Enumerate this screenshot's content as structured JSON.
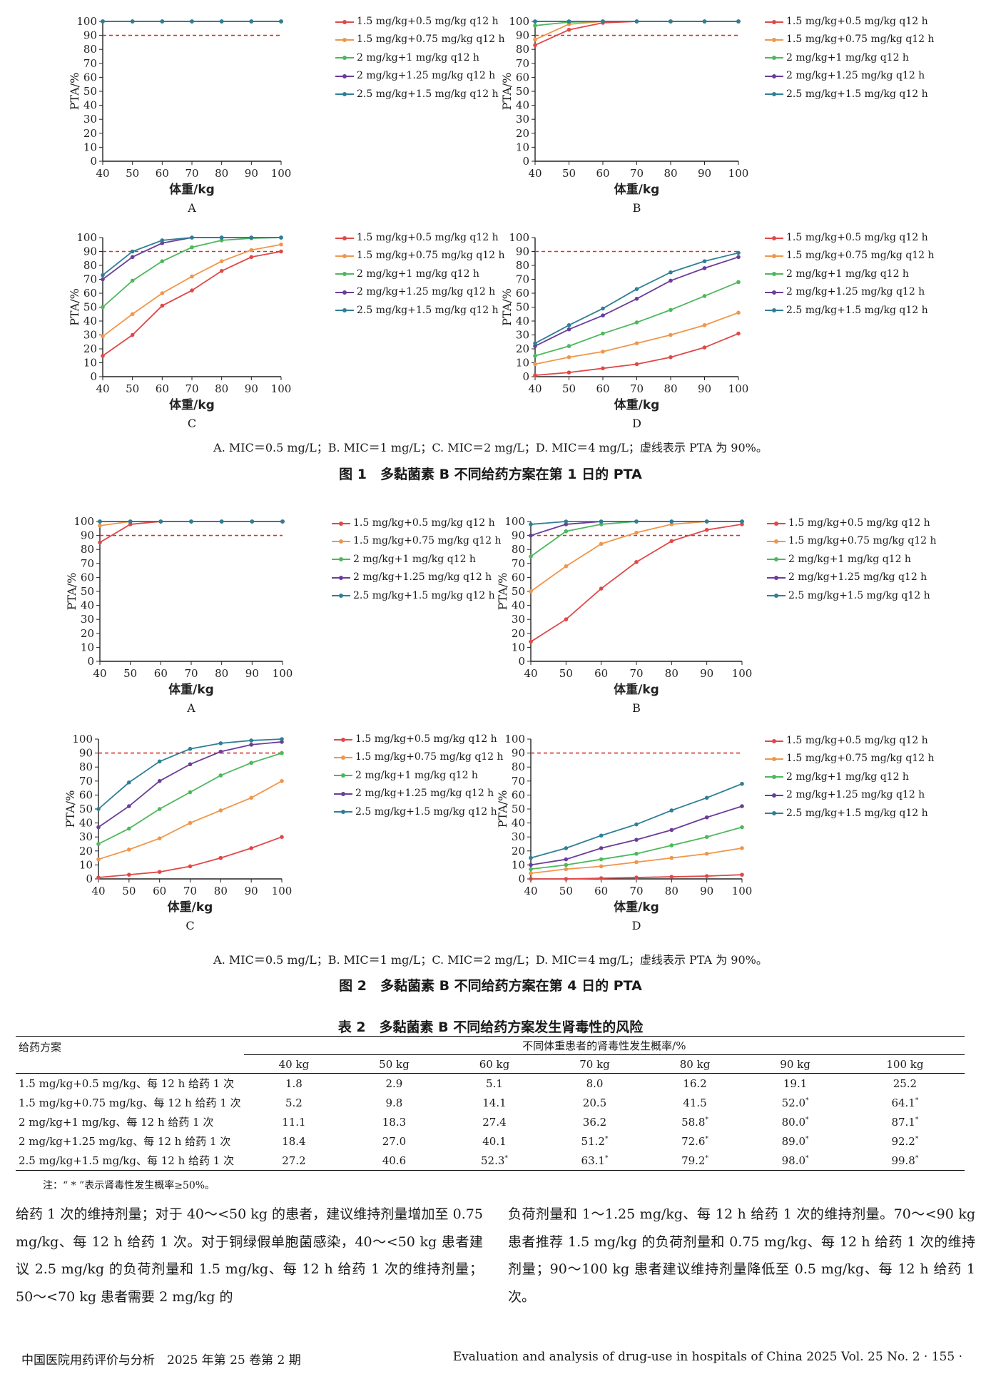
{
  "chart_data": [
    {
      "id": "fig1A",
      "type": "line",
      "panel": "A",
      "x": [
        40,
        50,
        60,
        70,
        80,
        90,
        100
      ],
      "ylim": [
        0,
        100
      ],
      "ylabel": "PTA/%",
      "xlabel": "体重/kg",
      "reference_line": 90,
      "series": [
        {
          "name": "1.5 mg/kg+0.5 mg/kg q12 h",
          "color": "#e04848",
          "values": [
            100,
            100,
            100,
            100,
            100,
            100,
            100
          ]
        },
        {
          "name": "1.5 mg/kg+0.75 mg/kg q12 h",
          "color": "#f0964a",
          "values": [
            100,
            100,
            100,
            100,
            100,
            100,
            100
          ]
        },
        {
          "name": "2 mg/kg+1 mg/kg q12 h",
          "color": "#4cb85c",
          "values": [
            100,
            100,
            100,
            100,
            100,
            100,
            100
          ]
        },
        {
          "name": "2 mg/kg+1.25 mg/kg q12 h",
          "color": "#6a3d9a",
          "values": [
            100,
            100,
            100,
            100,
            100,
            100,
            100
          ]
        },
        {
          "name": "2.5 mg/kg+1.5 mg/kg q12 h",
          "color": "#2e7f95",
          "values": [
            100,
            100,
            100,
            100,
            100,
            100,
            100
          ]
        }
      ]
    },
    {
      "id": "fig1B",
      "type": "line",
      "panel": "B",
      "x": [
        40,
        50,
        60,
        70,
        80,
        90,
        100
      ],
      "ylim": [
        0,
        100
      ],
      "ylabel": "PTA/%",
      "xlabel": "体重/kg",
      "reference_line": 90,
      "series": [
        {
          "name": "1.5 mg/kg+0.5 mg/kg q12 h",
          "color": "#e04848",
          "values": [
            83,
            94,
            99,
            100,
            100,
            100,
            100
          ]
        },
        {
          "name": "1.5 mg/kg+0.75 mg/kg q12 h",
          "color": "#f0964a",
          "values": [
            87,
            98,
            100,
            100,
            100,
            100,
            100
          ]
        },
        {
          "name": "2 mg/kg+1 mg/kg q12 h",
          "color": "#4cb85c",
          "values": [
            97,
            99.5,
            100,
            100,
            100,
            100,
            100
          ]
        },
        {
          "name": "2 mg/kg+1.25 mg/kg q12 h",
          "color": "#6a3d9a",
          "values": [
            100,
            100,
            100,
            100,
            100,
            100,
            100
          ]
        },
        {
          "name": "2.5 mg/kg+1.5 mg/kg q12 h",
          "color": "#2e7f95",
          "values": [
            100,
            100,
            100,
            100,
            100,
            100,
            100
          ]
        }
      ]
    },
    {
      "id": "fig1C",
      "type": "line",
      "panel": "C",
      "x": [
        40,
        50,
        60,
        70,
        80,
        90,
        100
      ],
      "ylim": [
        0,
        100
      ],
      "ylabel": "PTA/%",
      "xlabel": "体重/kg",
      "reference_line": 90,
      "series": [
        {
          "name": "1.5 mg/kg+0.5 mg/kg q12 h",
          "color": "#e04848",
          "values": [
            15,
            30,
            51,
            62,
            76,
            86,
            90
          ]
        },
        {
          "name": "1.5 mg/kg+0.75 mg/kg q12 h",
          "color": "#f0964a",
          "values": [
            29,
            45,
            60,
            72,
            83,
            91,
            95
          ]
        },
        {
          "name": "2 mg/kg+1 mg/kg q12 h",
          "color": "#4cb85c",
          "values": [
            50,
            69,
            83,
            93,
            98,
            99.5,
            100
          ]
        },
        {
          "name": "2 mg/kg+1.25 mg/kg q12 h",
          "color": "#6a3d9a",
          "values": [
            70,
            86,
            96,
            100,
            100,
            100,
            100
          ]
        },
        {
          "name": "2.5 mg/kg+1.5 mg/kg q12 h",
          "color": "#2e7f95",
          "values": [
            73,
            90,
            98,
            100,
            100,
            100,
            100
          ]
        }
      ]
    },
    {
      "id": "fig1D",
      "type": "line",
      "panel": "D",
      "x": [
        40,
        50,
        60,
        70,
        80,
        90,
        100
      ],
      "ylim": [
        0,
        100
      ],
      "ylabel": "PTA/%",
      "xlabel": "体重/kg",
      "reference_line": 90,
      "series": [
        {
          "name": "1.5 mg/kg+0.5 mg/kg q12 h",
          "color": "#e04848",
          "values": [
            1,
            3,
            6,
            9,
            14,
            21,
            31
          ]
        },
        {
          "name": "1.5 mg/kg+0.75 mg/kg q12 h",
          "color": "#f0964a",
          "values": [
            9,
            14,
            18,
            24,
            30,
            37,
            46
          ]
        },
        {
          "name": "2 mg/kg+1 mg/kg q12 h",
          "color": "#4cb85c",
          "values": [
            15,
            22,
            31,
            39,
            48,
            58,
            68
          ]
        },
        {
          "name": "2 mg/kg+1.25 mg/kg q12 h",
          "color": "#6a3d9a",
          "values": [
            22,
            34,
            44,
            56,
            69,
            78,
            86
          ]
        },
        {
          "name": "2.5 mg/kg+1.5 mg/kg q12 h",
          "color": "#2e7f95",
          "values": [
            24,
            37,
            49,
            63,
            75,
            83,
            89
          ]
        }
      ]
    },
    {
      "id": "fig2A",
      "type": "line",
      "panel": "A",
      "x": [
        40,
        50,
        60,
        70,
        80,
        90,
        100
      ],
      "ylim": [
        0,
        100
      ],
      "ylabel": "PTA/%",
      "xlabel": "体重/kg",
      "reference_line": 90,
      "series": [
        {
          "name": "1.5 mg/kg+0.5 mg/kg q12 h",
          "color": "#e04848",
          "values": [
            85,
            98,
            100,
            100,
            100,
            100,
            100
          ]
        },
        {
          "name": "1.5 mg/kg+0.75 mg/kg q12 h",
          "color": "#f0964a",
          "values": [
            97,
            100,
            100,
            100,
            100,
            100,
            100
          ]
        },
        {
          "name": "2 mg/kg+1 mg/kg q12 h",
          "color": "#4cb85c",
          "values": [
            100,
            100,
            100,
            100,
            100,
            100,
            100
          ]
        },
        {
          "name": "2 mg/kg+1.25 mg/kg q12 h",
          "color": "#6a3d9a",
          "values": [
            100,
            100,
            100,
            100,
            100,
            100,
            100
          ]
        },
        {
          "name": "2.5 mg/kg+1.5 mg/kg q12 h",
          "color": "#2e7f95",
          "values": [
            100,
            100,
            100,
            100,
            100,
            100,
            100
          ]
        }
      ]
    },
    {
      "id": "fig2B",
      "type": "line",
      "panel": "B",
      "x": [
        40,
        50,
        60,
        70,
        80,
        90,
        100
      ],
      "ylim": [
        0,
        100
      ],
      "ylabel": "PTA/%",
      "xlabel": "体重/kg",
      "reference_line": 90,
      "series": [
        {
          "name": "1.5 mg/kg+0.5 mg/kg q12 h",
          "color": "#e04848",
          "values": [
            14,
            30,
            52,
            71,
            86,
            94,
            98
          ]
        },
        {
          "name": "1.5 mg/kg+0.75 mg/kg q12 h",
          "color": "#f0964a",
          "values": [
            50,
            68,
            84,
            92,
            98,
            100,
            100
          ]
        },
        {
          "name": "2 mg/kg+1 mg/kg q12 h",
          "color": "#4cb85c",
          "values": [
            75,
            93,
            98,
            100,
            100,
            100,
            100
          ]
        },
        {
          "name": "2 mg/kg+1.25 mg/kg q12 h",
          "color": "#6a3d9a",
          "values": [
            90,
            98,
            100,
            100,
            100,
            100,
            100
          ]
        },
        {
          "name": "2.5 mg/kg+1.5 mg/kg q12 h",
          "color": "#2e7f95",
          "values": [
            98,
            100,
            100,
            100,
            100,
            100,
            100
          ]
        }
      ]
    },
    {
      "id": "fig2C",
      "type": "line",
      "panel": "C",
      "x": [
        40,
        50,
        60,
        70,
        80,
        90,
        100
      ],
      "ylim": [
        0,
        100
      ],
      "ylabel": "PTA/%",
      "xlabel": "体重/kg",
      "reference_line": 90,
      "series": [
        {
          "name": "1.5 mg/kg+0.5 mg/kg q12 h",
          "color": "#e04848",
          "values": [
            1,
            3,
            5,
            9,
            15,
            22,
            30
          ]
        },
        {
          "name": "1.5 mg/kg+0.75 mg/kg q12 h",
          "color": "#f0964a",
          "values": [
            14,
            21,
            29,
            40,
            49,
            58,
            70
          ]
        },
        {
          "name": "2 mg/kg+1 mg/kg q12 h",
          "color": "#4cb85c",
          "values": [
            25,
            36,
            50,
            62,
            74,
            83,
            90
          ]
        },
        {
          "name": "2 mg/kg+1.25 mg/kg q12 h",
          "color": "#6a3d9a",
          "values": [
            37,
            52,
            70,
            82,
            91,
            96,
            98
          ]
        },
        {
          "name": "2.5 mg/kg+1.5 mg/kg q12 h",
          "color": "#2e7f95",
          "values": [
            50,
            69,
            84,
            93,
            97,
            99,
            100
          ]
        }
      ]
    },
    {
      "id": "fig2D",
      "type": "line",
      "panel": "D",
      "x": [
        40,
        50,
        60,
        70,
        80,
        90,
        100
      ],
      "ylim": [
        0,
        100
      ],
      "ylabel": "PTA/%",
      "xlabel": "体重/kg",
      "reference_line": 90,
      "series": [
        {
          "name": "1.5 mg/kg+0.5 mg/kg q12 h",
          "color": "#e04848",
          "values": [
            0,
            0,
            0.5,
            1,
            1.5,
            2,
            3
          ]
        },
        {
          "name": "1.5 mg/kg+0.75 mg/kg q12 h",
          "color": "#f0964a",
          "values": [
            4,
            7,
            9,
            12,
            15,
            18,
            22
          ]
        },
        {
          "name": "2 mg/kg+1 mg/kg q12 h",
          "color": "#4cb85c",
          "values": [
            7,
            10,
            14,
            18,
            24,
            30,
            37
          ]
        },
        {
          "name": "2 mg/kg+1.25 mg/kg q12 h",
          "color": "#6a3d9a",
          "values": [
            10,
            14,
            22,
            28,
            35,
            44,
            52
          ]
        },
        {
          "name": "2.5 mg/kg+1.5 mg/kg q12 h",
          "color": "#2e7f95",
          "values": [
            15,
            22,
            31,
            39,
            49,
            58,
            68
          ]
        }
      ]
    }
  ],
  "figure1": {
    "note": "A. MIC＝0.5 mg/L；B. MIC＝1 mg/L；C. MIC＝2 mg/L；D. MIC＝4 mg/L；虚线表示 PTA 为 90%。",
    "title": "图 1　多黏菌素 B 不同给药方案在第 1 日的 PTA"
  },
  "figure2": {
    "note": "A. MIC＝0.5 mg/L；B. MIC＝1 mg/L；C. MIC＝2 mg/L；D. MIC＝4 mg/L；虚线表示 PTA 为 90%。",
    "title": "图 2　多黏菌素 B 不同给药方案在第 4 日的 PTA"
  },
  "table": {
    "title": "表 2　多黏菌素 B 不同给药方案发生肾毒性的风险",
    "col_regimen": "给药方案",
    "col_group": "不同体重患者的肾毒性发生概率/%",
    "weights": [
      "40 kg",
      "50 kg",
      "60 kg",
      "70 kg",
      "80 kg",
      "90 kg",
      "100 kg"
    ],
    "rows": [
      {
        "regimen": "1.5 mg/kg+0.5 mg/kg、每 12 h 给药 1 次",
        "values": [
          "1.8",
          "2.9",
          "5.1",
          "8.0",
          "16.2",
          "19.1",
          "25.2"
        ],
        "flags": [
          false,
          false,
          false,
          false,
          false,
          false,
          false
        ]
      },
      {
        "regimen": "1.5 mg/kg+0.75 mg/kg、每 12 h 给药 1 次",
        "values": [
          "5.2",
          "9.8",
          "14.1",
          "20.5",
          "41.5",
          "52.0",
          "64.1"
        ],
        "flags": [
          false,
          false,
          false,
          false,
          false,
          true,
          true
        ]
      },
      {
        "regimen": "2 mg/kg+1 mg/kg、每 12 h 给药 1 次",
        "values": [
          "11.1",
          "18.3",
          "27.4",
          "36.2",
          "58.8",
          "80.0",
          "87.1"
        ],
        "flags": [
          false,
          false,
          false,
          false,
          true,
          true,
          true
        ]
      },
      {
        "regimen": "2 mg/kg+1.25 mg/kg、每 12 h 给药 1 次",
        "values": [
          "18.4",
          "27.0",
          "40.1",
          "51.2",
          "72.6",
          "89.0",
          "92.2"
        ],
        "flags": [
          false,
          false,
          false,
          true,
          true,
          true,
          true
        ]
      },
      {
        "regimen": "2.5 mg/kg+1.5 mg/kg、每 12 h 给药 1 次",
        "values": [
          "27.2",
          "40.6",
          "52.3",
          "63.1",
          "79.2",
          "98.0",
          "99.8"
        ],
        "flags": [
          false,
          false,
          true,
          true,
          true,
          true,
          true
        ]
      }
    ],
    "flag_mark": "*",
    "note": "注：“ * ”表示肾毒性发生概率≥50%。"
  },
  "body": {
    "left": "给药 1 次的维持剂量；对于 40～<50 kg 的患者，建议维持剂量增加至 0.75 mg/kg、每 12 h 给药 1 次。对于铜绿假单胞菌感染，40～<50 kg 患者建议 2.5 mg/kg 的负荷剂量和 1.5 mg/kg、每 12 h 给药 1 次的维持剂量；50～<70 kg 患者需要 2 mg/kg 的",
    "right": "负荷剂量和 1～1.25 mg/kg、每 12 h 给药 1 次的维持剂量。70～<90 kg 患者推荐 1.5 mg/kg 的负荷剂量和 0.75 mg/kg、每 12 h 给药 1 次的维持剂量；90～100 kg 患者建议维持剂量降低至 0.5 mg/kg、每 12 h 给药 1 次。"
  },
  "footer": {
    "left": "中国医院用药评价与分析　2025 年第 25 卷第 2 期",
    "right": "Evaluation and analysis of drug-use in hospitals of China 2025 Vol. 25 No. 2 · 155 ·"
  }
}
